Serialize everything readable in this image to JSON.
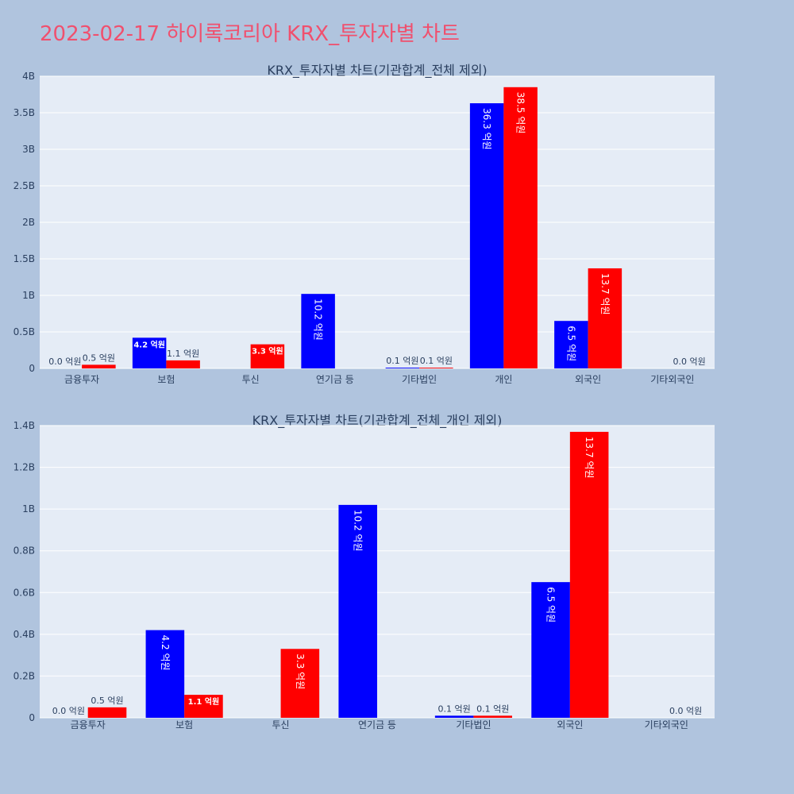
{
  "page_title": "2023-02-17 하이록코리아 KRX_투자자별 차트",
  "colors": {
    "buy": "#0000ff",
    "sell": "#ff0000",
    "plot_bg": "#e5ecf6",
    "paper_bg": "#b0c4de",
    "grid": "#ffffff",
    "text": "#2a3f5f"
  },
  "chart_data": [
    {
      "type": "bar",
      "title": "KRX_투자자별 차트(기관합계_전체 제외)",
      "categories": [
        "금융투자",
        "보험",
        "투신",
        "연기금 등",
        "기타법인",
        "개인",
        "외국인",
        "기타외국인"
      ],
      "ylim": [
        0,
        4000000000
      ],
      "yticks": [
        0,
        500000000,
        1000000000,
        1500000000,
        2000000000,
        2500000000,
        3000000000,
        3500000000,
        4000000000
      ],
      "ytick_labels": [
        "0",
        "0.5B",
        "1B",
        "1.5B",
        "2B",
        "2.5B",
        "3B",
        "3.5B",
        "4B"
      ],
      "grid": true,
      "legend": "none",
      "series": [
        {
          "color": "#0000ff",
          "values": [
            0,
            420000000,
            0,
            1020000000,
            10000000,
            3630000000,
            650000000,
            0
          ],
          "labels": [
            "0.0 억원",
            "4.2 억원",
            "",
            "10.2 억원",
            "0.1 억원",
            "36.3 억원",
            "6.5 억원",
            ""
          ]
        },
        {
          "color": "#ff0000",
          "values": [
            50000000,
            110000000,
            330000000,
            0,
            10000000,
            3850000000,
            1370000000,
            0
          ],
          "labels": [
            "0.5 억원",
            "1.1 억원",
            "3.3 억원",
            "",
            "0.1 억원",
            "38.5 억원",
            "13.7 억원",
            "0.0 억원"
          ]
        }
      ]
    },
    {
      "type": "bar",
      "title": "KRX_투자자별 차트(기관합계_전체_개인 제외)",
      "categories": [
        "금융투자",
        "보험",
        "투신",
        "연기금 등",
        "기타법인",
        "외국인",
        "기타외국인"
      ],
      "ylim": [
        0,
        1400000000
      ],
      "yticks": [
        0,
        200000000,
        400000000,
        600000000,
        800000000,
        1000000000,
        1200000000,
        1400000000
      ],
      "ytick_labels": [
        "0",
        "0.2B",
        "0.4B",
        "0.6B",
        "0.8B",
        "1B",
        "1.2B",
        "1.4B"
      ],
      "grid": true,
      "legend": "none",
      "series": [
        {
          "color": "#0000ff",
          "values": [
            0,
            420000000,
            0,
            1020000000,
            10000000,
            650000000,
            0
          ],
          "labels": [
            "0.0 억원",
            "4.2 억원",
            "",
            "10.2 억원",
            "0.1 억원",
            "6.5 억원",
            ""
          ]
        },
        {
          "color": "#ff0000",
          "values": [
            50000000,
            110000000,
            330000000,
            0,
            10000000,
            1370000000,
            0
          ],
          "labels": [
            "0.5 억원",
            "1.1 억원",
            "3.3 억원",
            "",
            "0.1 억원",
            "13.7 억원",
            "0.0 억원"
          ]
        }
      ]
    }
  ]
}
